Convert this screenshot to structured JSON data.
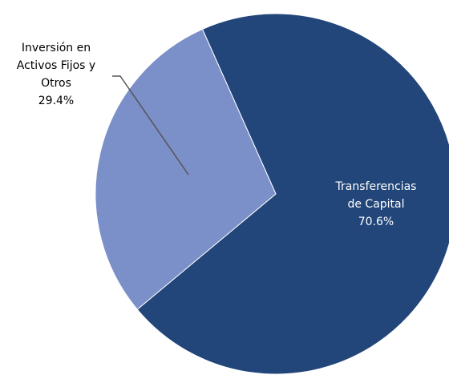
{
  "chart_data": {
    "type": "pie",
    "categories": [
      "Transferencias de Capital",
      "Inversión en Activos Fijos y Otros"
    ],
    "values": [
      70.6,
      29.4
    ],
    "value_labels": [
      "70.6%",
      "29.4%"
    ],
    "colors": [
      "#22467a",
      "#7b8fc8"
    ]
  }
}
